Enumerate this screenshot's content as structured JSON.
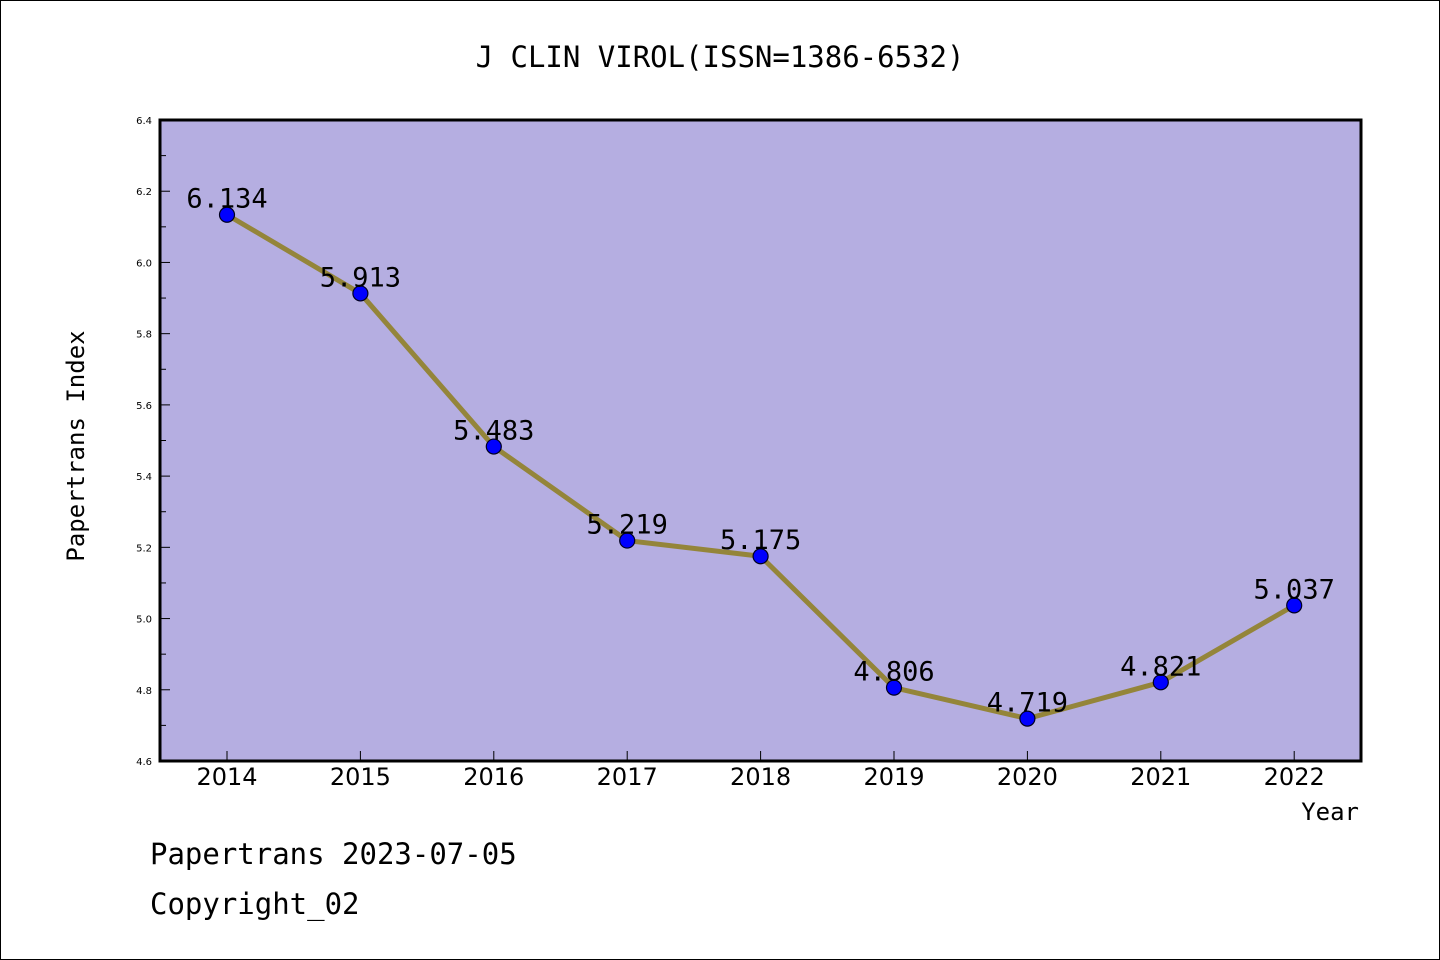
{
  "chart_data": {
    "type": "line",
    "title": "J CLIN VIROL(ISSN=1386-6532)",
    "xlabel": "Year",
    "ylabel": "Papertrans Index",
    "x": [
      "2014",
      "2015",
      "2016",
      "2017",
      "2018",
      "2019",
      "2020",
      "2021",
      "2022"
    ],
    "series": [
      {
        "values": [
          6.134,
          5.913,
          5.483,
          5.219,
          5.175,
          4.806,
          4.719,
          4.821,
          5.037
        ],
        "data_labels": [
          "6.134",
          "5.913",
          "5.483",
          "5.219",
          "5.175",
          "4.806",
          "4.719",
          "4.821",
          "5.037"
        ]
      }
    ],
    "ylim": [
      4.6,
      6.4
    ],
    "yticks": [
      "4.6",
      "4.8",
      "5.0",
      "5.2",
      "5.4",
      "5.6",
      "5.8",
      "6.0",
      "6.2",
      "6.4"
    ],
    "grid": false,
    "colors": {
      "plot_background": "#b5aee1",
      "line": "#94853a",
      "marker": "#0000ff"
    }
  },
  "footer": {
    "source_line": "Papertrans 2023-07-05",
    "copyright": "Copyright_02"
  }
}
